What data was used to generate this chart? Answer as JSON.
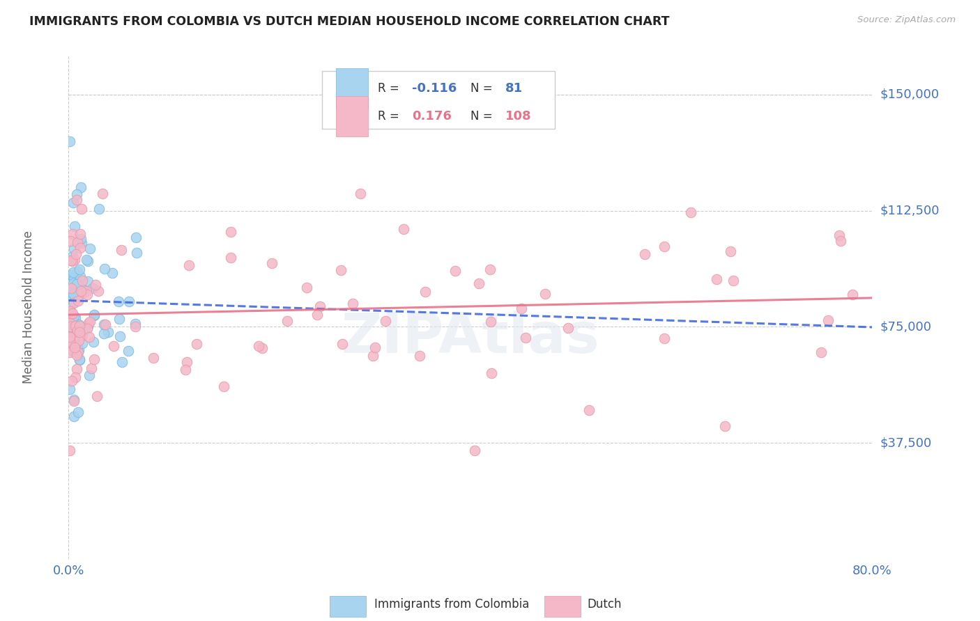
{
  "title": "IMMIGRANTS FROM COLOMBIA VS DUTCH MEDIAN HOUSEHOLD INCOME CORRELATION CHART",
  "source": "Source: ZipAtlas.com",
  "ylabel": "Median Household Income",
  "ytick_labels": [
    "$37,500",
    "$75,000",
    "$112,500",
    "$150,000"
  ],
  "ytick_values": [
    37500,
    75000,
    112500,
    150000
  ],
  "ymin": 0,
  "ymax": 162500,
  "xmin": 0.0,
  "xmax": 0.8,
  "color_blue": "#A8D4F0",
  "color_blue_edge": "#7AB8E0",
  "color_blue_line": "#4169E1",
  "color_pink": "#F4B8C8",
  "color_pink_edge": "#E898A8",
  "color_pink_line": "#E8728A",
  "color_axis_text": "#4472C4",
  "color_text_dark": "#333333",
  "color_grid": "#CCCCCC",
  "watermark": "ZIPAtlas",
  "legend_r1_label": "R = ",
  "legend_r1_val": "-0.116",
  "legend_n1_label": "N = ",
  "legend_n1_val": "81",
  "legend_r2_label": "R = ",
  "legend_r2_val": "0.176",
  "legend_n2_label": "N = ",
  "legend_n2_val": "108",
  "bottom_legend1": "Immigrants from Colombia",
  "bottom_legend2": "Dutch"
}
